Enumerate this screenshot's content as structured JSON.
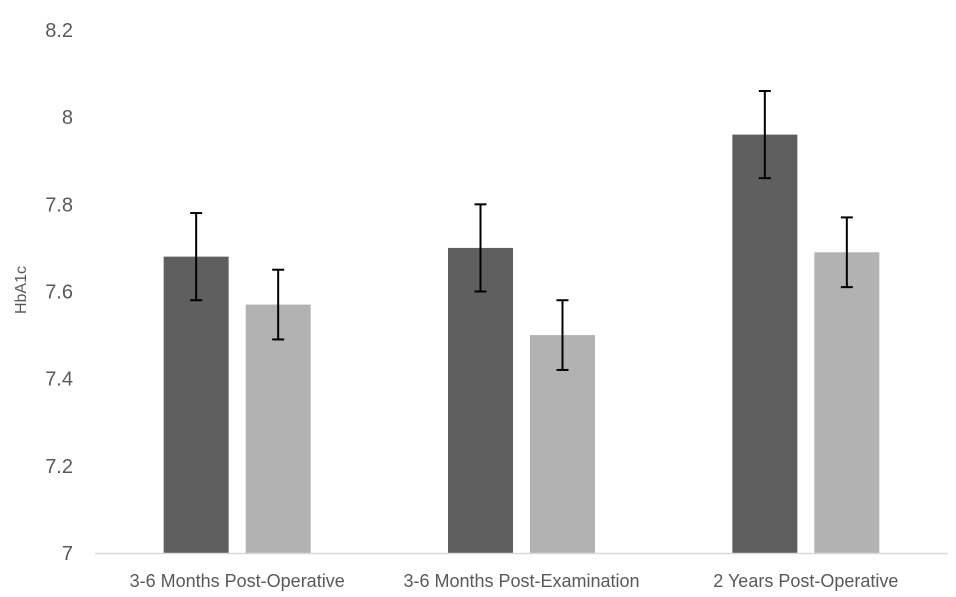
{
  "chart_data": {
    "type": "bar",
    "title": "",
    "xlabel": "",
    "ylabel": "HbA1c",
    "ylim": [
      7,
      8.2
    ],
    "y_ticks": [
      "7",
      "7.2",
      "7.4",
      "7.6",
      "7.8",
      "8",
      "8.2"
    ],
    "y_tick_values": [
      7,
      7.2,
      7.4,
      7.6,
      7.8,
      8,
      8.2
    ],
    "grid": false,
    "legend": "none",
    "categories": [
      "3-6 Months Post-Operative",
      "3-6 Months Post-Examination",
      "2 Years Post-Operative"
    ],
    "series": [
      {
        "color": "#5f5f5f",
        "values": [
          7.68,
          7.7,
          7.96
        ],
        "error": [
          0.1,
          0.1,
          0.1
        ]
      },
      {
        "color": "#b2b2b2",
        "values": [
          7.57,
          7.5,
          7.69
        ],
        "error": [
          0.08,
          0.08,
          0.08
        ]
      }
    ],
    "colors": {
      "axis": "#d9d9d9",
      "text": "#595959",
      "error_bar": "#000000"
    }
  }
}
